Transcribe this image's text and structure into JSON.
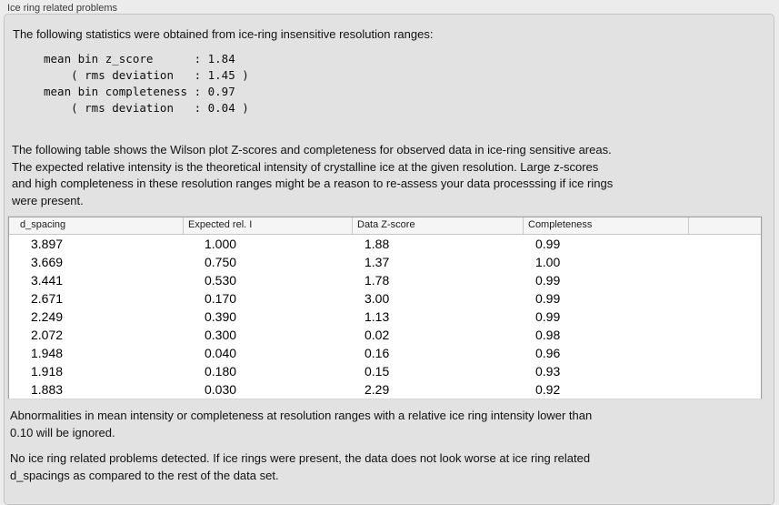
{
  "panel": {
    "title": "Ice ring related problems"
  },
  "sections": {
    "stats_intro": "The following statistics were obtained from ice-ring insensitive resolution ranges:",
    "stats_block": "mean bin z_score      : 1.84\n    ( rms deviation   : 1.45 )\nmean bin completeness : 0.97\n    ( rms deviation   : 0.04 )",
    "table_intro": "The following table shows the Wilson plot Z-scores and completeness for observed data in ice-ring sensitive areas.\nThe expected relative intensity is the theoretical intensity of crystalline ice at the given resolution. Large z-scores\nand high completeness in these resolution ranges might be a reason to re-assess your data processsing if ice rings\nwere present.",
    "note_ignore": "Abnormalities in mean intensity or completeness at resolution ranges with a relative ice ring intensity lower than\n0.10 will be ignored.",
    "note_result": "No ice ring related problems detected. If ice rings were present, the data does not look worse at ice ring related\nd_spacings as compared to the rest of the data set."
  },
  "table": {
    "columns": [
      "d_spacing",
      "Expected rel. I",
      "Data Z-score",
      "Completeness",
      ""
    ],
    "rows": [
      [
        "3.897",
        "1.000",
        "1.88",
        "0.99"
      ],
      [
        "3.669",
        "0.750",
        "1.37",
        "1.00"
      ],
      [
        "3.441",
        "0.530",
        "1.78",
        "0.99"
      ],
      [
        "2.671",
        "0.170",
        "3.00",
        "0.99"
      ],
      [
        "2.249",
        "0.390",
        "1.13",
        "0.99"
      ],
      [
        "2.072",
        "0.300",
        "0.02",
        "0.98"
      ],
      [
        "1.948",
        "0.040",
        "0.16",
        "0.96"
      ],
      [
        "1.918",
        "0.180",
        "0.15",
        "0.93"
      ],
      [
        "1.883",
        "0.030",
        "2.29",
        "0.92"
      ]
    ]
  },
  "colors": {
    "window_bg": "#ececec",
    "panel_bg": "#e2e2e2",
    "table_header_bg": "#f5f5f5",
    "table_body_bg": "#ffffff",
    "panel_border": "#c3c3c3",
    "table_border": "#a0a0a0"
  }
}
